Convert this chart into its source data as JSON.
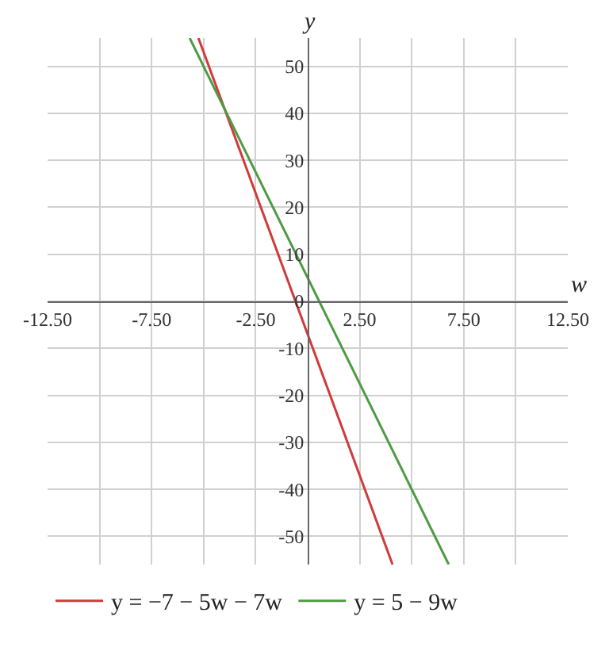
{
  "chart_data": {
    "type": "line",
    "xlabel": "w",
    "ylabel": "y",
    "xlim": [
      -12.5,
      12.5
    ],
    "ylim": [
      -56,
      56
    ],
    "xticks": [
      {
        "value": -12.5,
        "label": "-12.50"
      },
      {
        "value": -10,
        "label": null
      },
      {
        "value": -7.5,
        "label": "-7.50"
      },
      {
        "value": -5,
        "label": null
      },
      {
        "value": -2.5,
        "label": "-2.50"
      },
      {
        "value": 2.5,
        "label": "2.50"
      },
      {
        "value": 5,
        "label": null
      },
      {
        "value": 7.5,
        "label": "7.50"
      },
      {
        "value": 10,
        "label": null
      },
      {
        "value": 12.5,
        "label": "12.50"
      }
    ],
    "yticks": [
      -50,
      -40,
      -30,
      -20,
      -10,
      0,
      10,
      20,
      30,
      40,
      50
    ],
    "grid": true,
    "legend": "bottom",
    "marker": "none",
    "line_style": "solid",
    "series": [
      {
        "name": "y = −7 − 5w − 7w",
        "color": "#d03a3a",
        "x": [
          -5.25,
          4.08
        ],
        "values": [
          56,
          -56
        ]
      },
      {
        "name": "y = 5 − 9w",
        "color": "#4e9a45",
        "x": [
          -5.67,
          6.78
        ],
        "values": [
          56,
          -56
        ]
      }
    ]
  }
}
